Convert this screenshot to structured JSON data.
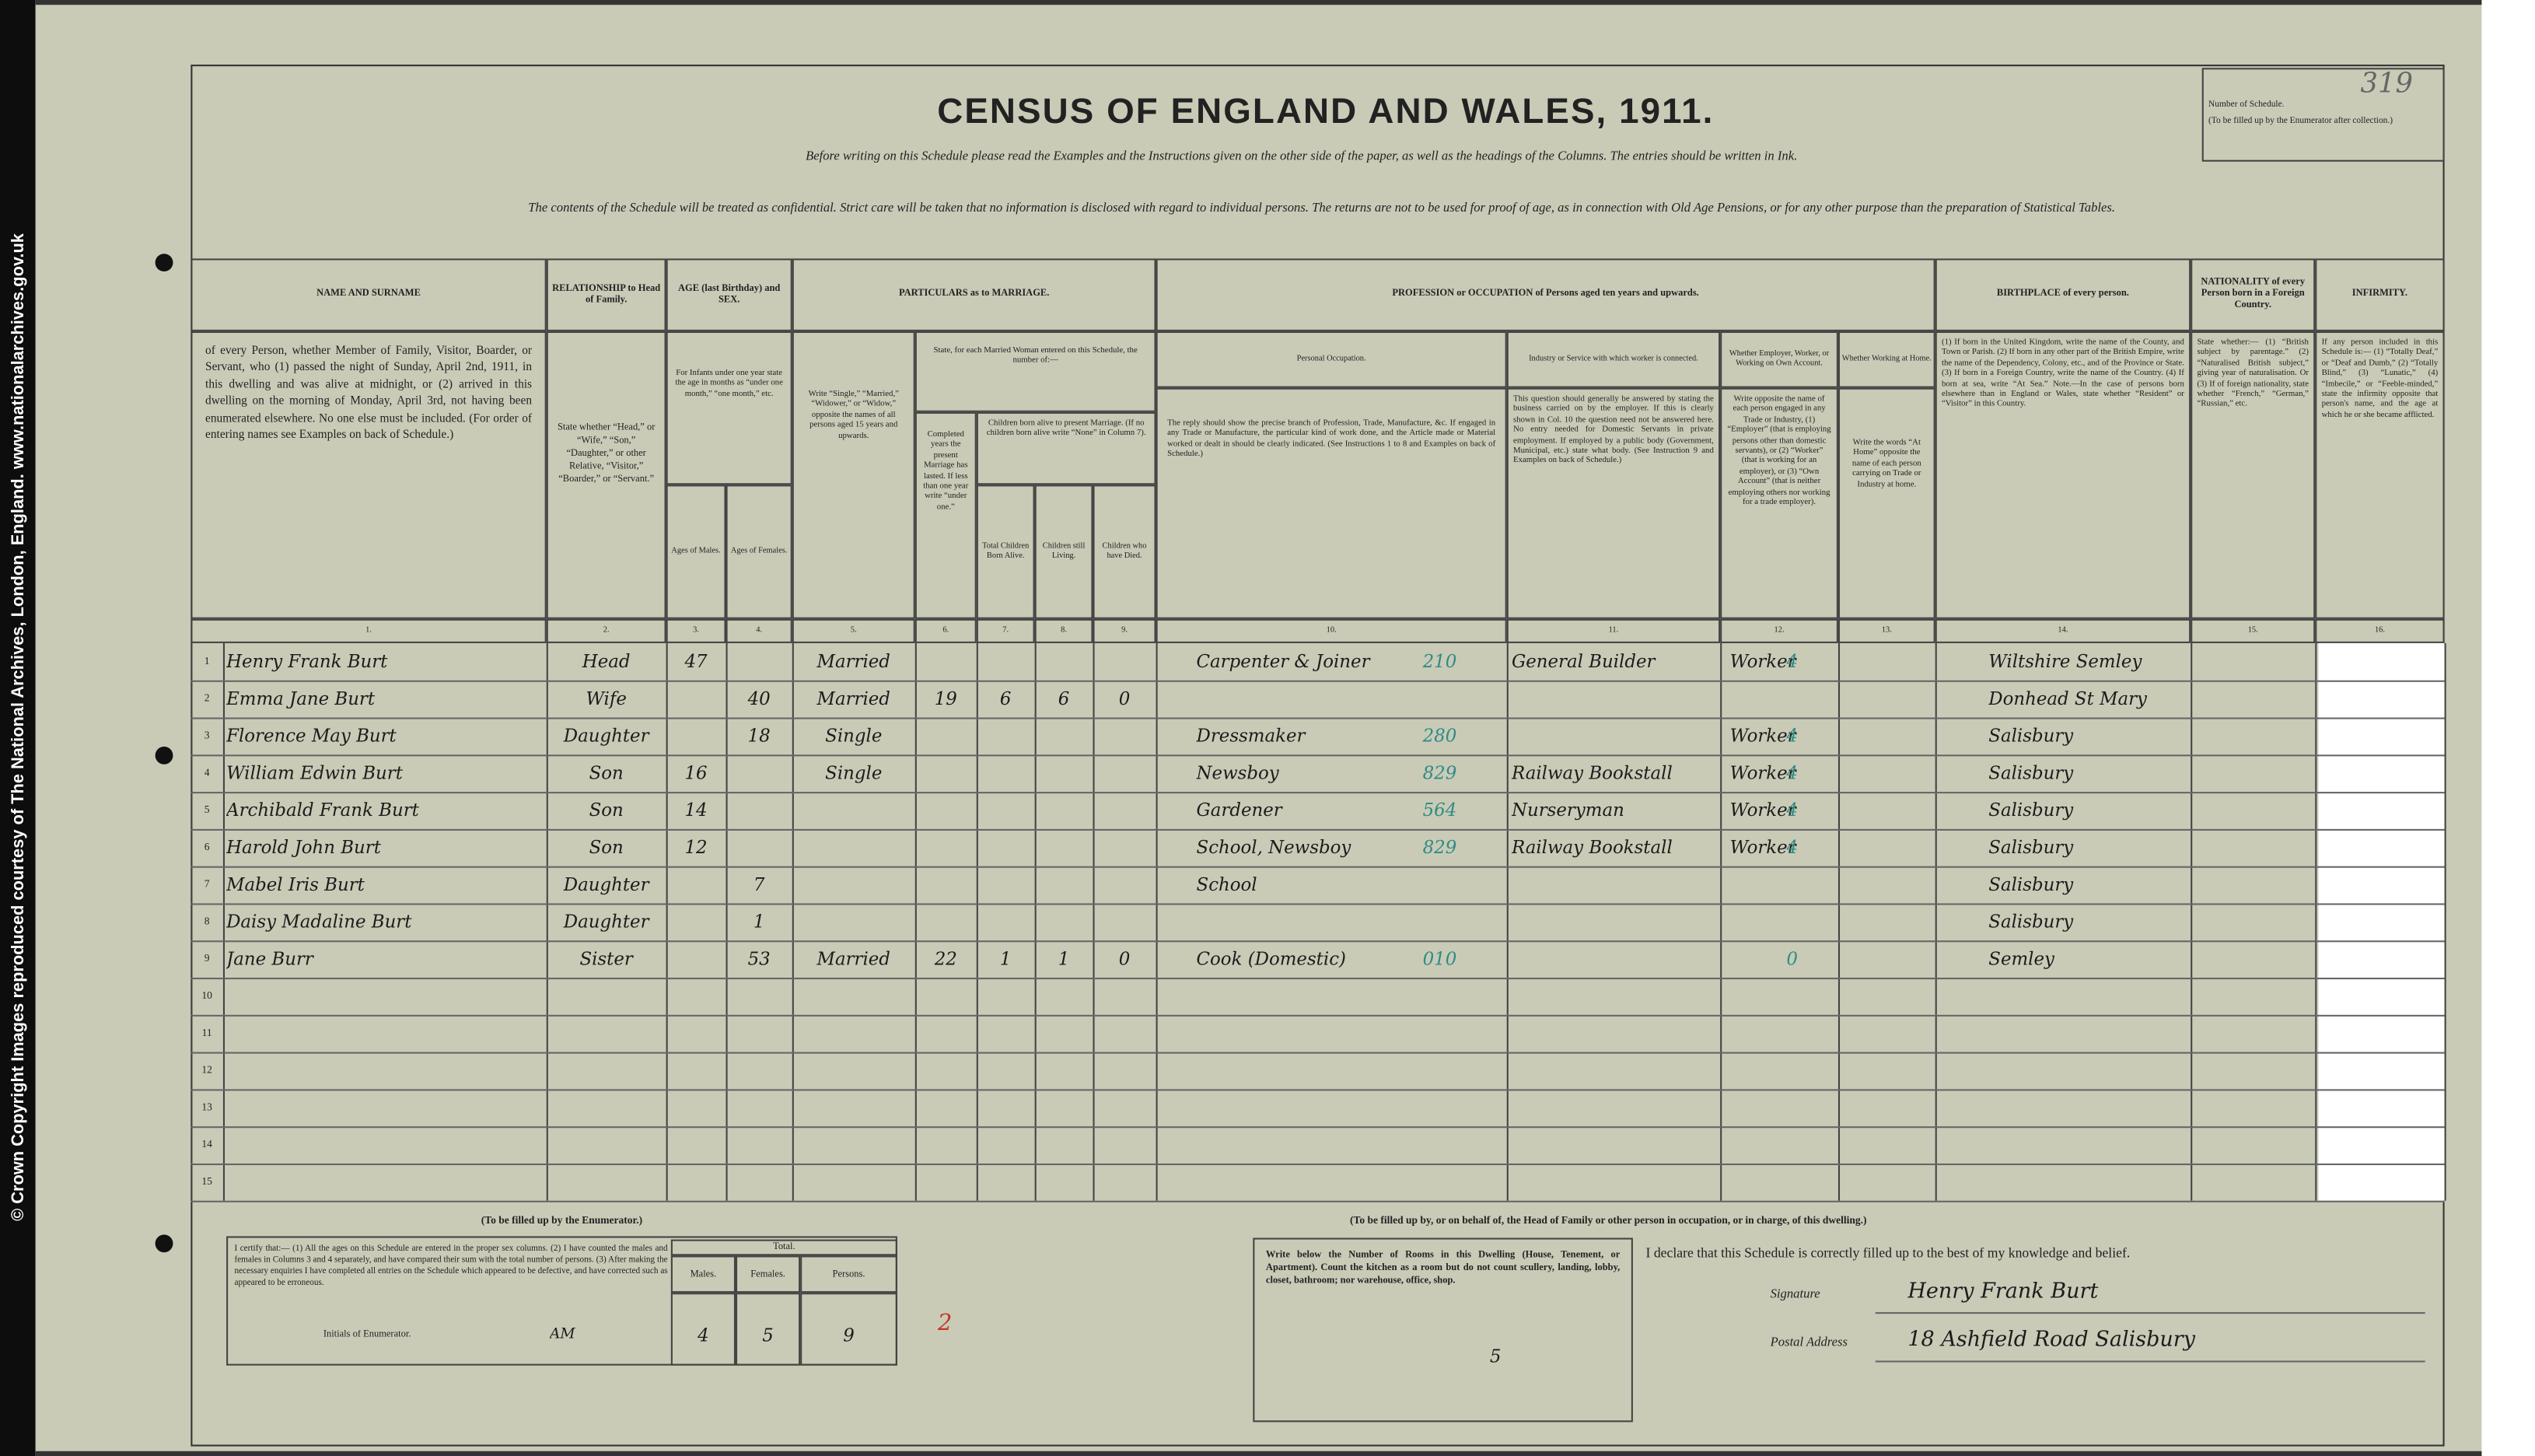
{
  "side_note": "© Crown Copyright Images reproduced courtesy of The National Archives, London, England. www.nationalarchives.gov.uk",
  "header": {
    "title": "CENSUS OF ENGLAND AND WALES, 1911.",
    "instruction": "Before writing on this Schedule please read the Examples and the Instructions given on the other side of the paper, as well as the headings of the Columns. The entries should be written in Ink.",
    "confidential": "The contents of the Schedule will be treated as confidential. Strict care will be taken that no information is disclosed with regard to individual persons. The returns are not to be used for proof of age, as in connection with Old Age Pensions, or for any other purpose than the preparation of Statistical Tables.",
    "schedule": {
      "label": "Number of Schedule.",
      "note": "(To be filled up by the Enumerator after collection.)",
      "number": "319"
    }
  },
  "groups": {
    "age": "AGE (last Birthday) and SEX.",
    "age_description": "For Infants under one year state the age in months as “under one month,” “one month,” etc.",
    "marriage": "PARTICULARS as to MARRIAGE.",
    "married_woman": "State, for each Married Woman entered on this Schedule, the number of:—",
    "children": "Children born alive to present Marriage. (If no children born alive write “None” in Column 7).",
    "profession": "PROFESSION or OCCUPATION of Persons aged ten years and upwards."
  },
  "columns": [
    {
      "number": "1.",
      "heading": "NAME AND SURNAME",
      "description": "of every Person, whether Member of Family, Visitor, Boarder, or Servant, who (1) passed the night of Sunday, April 2nd, 1911, in this dwelling and was alive at midnight, or (2) arrived in this dwelling on the morning of Monday, April 3rd, not having been enumerated elsewhere. No one else must be included. (For order of entering names see Examples on back of Schedule.)"
    },
    {
      "number": "2.",
      "heading": "RELATIONSHIP to Head of Family.",
      "description": "State whether “Head,” or “Wife,” “Son,” “Daughter,” or other Relative, “Visitor,” “Boarder,” or “Servant.”"
    },
    {
      "number": "3.",
      "heading": "Ages of Males."
    },
    {
      "number": "4.",
      "heading": "Ages of Females."
    },
    {
      "number": "5.",
      "description": "Write “Single,” “Married,” “Widower,” or “Widow,” opposite the names of all persons aged 15 years and upwards."
    },
    {
      "number": "6.",
      "description": "Completed years the present Marriage has lasted. If less than one year write “under one.”"
    },
    {
      "number": "7.",
      "heading": "Total Children Born Alive."
    },
    {
      "number": "8.",
      "heading": "Children still Living."
    },
    {
      "number": "9.",
      "heading": "Children who have Died."
    },
    {
      "number": "10.",
      "heading": "Personal Occupation.",
      "description": "The reply should show the precise branch of Profession, Trade, Manufacture, &c. If engaged in any Trade or Manufacture, the particular kind of work done, and the Article made or Material worked or dealt in should be clearly indicated. (See Instructions 1 to 8 and Examples on back of Schedule.)"
    },
    {
      "number": "11.",
      "heading": "Industry or Service with which worker is connected.",
      "description": "This question should generally be answered by stating the business carried on by the employer. If this is clearly shown in Col. 10 the question need not be answered here. No entry needed for Domestic Servants in private employment. If employed by a public body (Government, Municipal, etc.) state what body. (See Instruction 9 and Examples on back of Schedule.)"
    },
    {
      "number": "12.",
      "heading": "Whether Employer, Worker, or Working on Own Account.",
      "description": "Write opposite the name of each person engaged in any Trade or Industry, (1) “Employer” (that is employing persons other than domestic servants), or (2) “Worker” (that is working for an employer), or (3) “Own Account” (that is neither employing others nor working for a trade employer)."
    },
    {
      "number": "13.",
      "heading": "Whether Working at Home.",
      "description": "Write the words “At Home” opposite the name of each person carrying on Trade or Industry at home."
    },
    {
      "number": "14.",
      "heading": "BIRTHPLACE of every person.",
      "description": "(1) If born in the United Kingdom, write the name of the County, and Town or Parish. (2) If born in any other part of the British Empire, write the name of the Dependency, Colony, etc., and of the Province or State. (3) If born in a Foreign Country, write the name of the Country. (4) If born at sea, write “At Sea.” Note.—In the case of persons born elsewhere than in England or Wales, state whether “Resident” or “Visitor” in this Country."
    },
    {
      "number": "15.",
      "heading": "NATIONALITY of every Person born in a Foreign Country.",
      "description": "State whether:— (1) “British subject by parentage.” (2) “Naturalised British subject,” giving year of naturalisation. Or (3) If of foreign nationality, state whether “French,” “German,” “Russian,” etc."
    },
    {
      "number": "16.",
      "heading": "INFIRMITY.",
      "description": "If any person included in this Schedule is:— (1) “Totally Deaf,” or “Deaf and Dumb,” (2) “Totally Blind,” (3) “Lunatic,” (4) “Imbecile,” or “Feeble-minded,” state the infirmity opposite that person's name, and the age at which he or she became afflicted."
    }
  ],
  "table": {
    "rows": [
      {
        "number": "1",
        "entries": {
          "name": "Henry Frank Burt",
          "relationship": "Head",
          "male_age": "47",
          "condition": "Married",
          "occupation": "Carpenter & Joiner",
          "occupation_code": "210",
          "industry": "General Builder",
          "employment": "Worker",
          "employment_code": "4",
          "birthplace": "Wiltshire Semley"
        }
      },
      {
        "number": "2",
        "entries": {
          "name": "Emma Jane Burt",
          "relationship": "Wife",
          "female_age": "40",
          "condition": "Married",
          "years_married": "19",
          "children_born": "6",
          "children_living": "6",
          "children_died": "0",
          "birthplace": "Donhead St Mary"
        }
      },
      {
        "number": "3",
        "entries": {
          "name": "Florence May Burt",
          "relationship": "Daughter",
          "female_age": "18",
          "condition": "Single",
          "occupation": "Dressmaker",
          "occupation_code": "280",
          "employment": "Worker",
          "employment_code": "4",
          "birthplace": "Salisbury"
        }
      },
      {
        "number": "4",
        "entries": {
          "name": "William Edwin Burt",
          "relationship": "Son",
          "male_age": "16",
          "condition": "Single",
          "occupation": "Newsboy",
          "occupation_code": "829",
          "industry": "Railway Bookstall",
          "employment": "Worker",
          "employment_code": "4",
          "birthplace": "Salisbury"
        }
      },
      {
        "number": "5",
        "entries": {
          "name": "Archibald Frank Burt",
          "relationship": "Son",
          "male_age": "14",
          "occupation": "Gardener",
          "occupation_code": "564",
          "industry": "Nurseryman",
          "employment": "Worker",
          "employment_code": "4",
          "birthplace": "Salisbury"
        }
      },
      {
        "number": "6",
        "entries": {
          "name": "Harold John Burt",
          "relationship": "Son",
          "male_age": "12",
          "occupation": "School, Newsboy",
          "occupation_code": "829",
          "industry": "Railway Bookstall",
          "employment": "Worker",
          "employment_code": "4",
          "birthplace": "Salisbury"
        }
      },
      {
        "number": "7",
        "entries": {
          "name": "Mabel Iris Burt",
          "relationship": "Daughter",
          "female_age": "7",
          "occupation": "School",
          "birthplace": "Salisbury"
        }
      },
      {
        "number": "8",
        "entries": {
          "name": "Daisy Madaline Burt",
          "relationship": "Daughter",
          "female_age": "1",
          "birthplace": "Salisbury"
        }
      },
      {
        "number": "9",
        "entries": {
          "name": "Jane Burr",
          "relationship": "Sister",
          "female_age": "53",
          "condition": "Married",
          "years_married": "22",
          "children_born": "1",
          "children_living": "1",
          "children_died": "0",
          "occupation": "Cook (Domestic)",
          "occupation_code": "010",
          "employment_code": "0",
          "birthplace": "Semley"
        }
      },
      {
        "number": "10"
      },
      {
        "number": "11"
      },
      {
        "number": "12"
      },
      {
        "number": "13"
      },
      {
        "number": "14"
      },
      {
        "number": "15"
      }
    ]
  },
  "enumerator": {
    "caption": "(To be filled up by the Enumerator.)",
    "certificate": "I certify that:— (1) All the ages on this Schedule are entered in the proper sex columns. (2) I have counted the males and females in Columns 3 and 4 separately, and have compared their sum with the total number of persons. (3) After making the necessary enquiries I have completed all entries on the Schedule which appeared to be defective, and have corrected such as appeared to be erroneous.",
    "initials_label": "Initials of Enumerator.",
    "initials": "AM",
    "total_label": "Total.",
    "males_label": "Males.",
    "females_label": "Females.",
    "persons_label": "Persons.",
    "males": "4",
    "females": "5",
    "persons": "9",
    "mark": "2"
  },
  "head_of_family": {
    "caption": "(To be filled up by, or on behalf of, the Head of Family or other person in occupation, or in charge, of this dwelling.)",
    "rooms_instruction": "Write below the Number of Rooms in this Dwelling (House, Tenement, or Apartment). Count the kitchen as a room but do not count scullery, landing, lobby, closet, bathroom; nor warehouse, office, shop.",
    "rooms": "5",
    "declaration": "I declare that this Schedule is correctly filled up to the best of my knowledge and belief.",
    "signature_label": "Signature",
    "signature": "Henry Frank Burt",
    "address_label": "Postal Address",
    "address": "18 Ashfield Road Salisbury"
  }
}
